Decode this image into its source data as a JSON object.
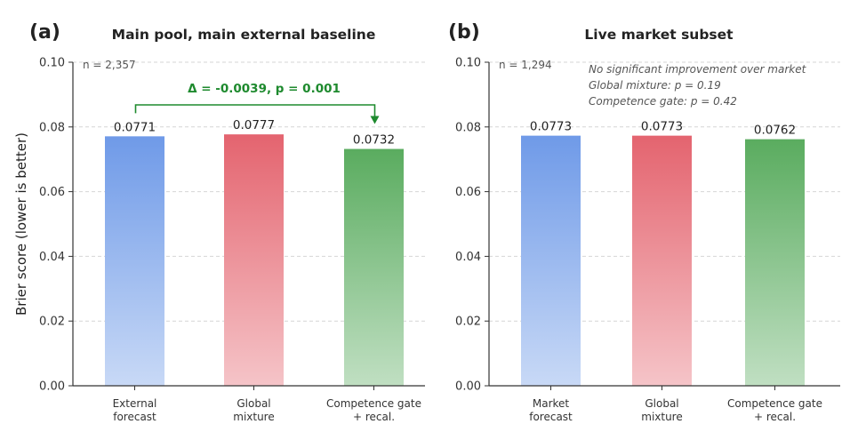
{
  "figure": {
    "ylabel": "Brier score (lower is better)"
  },
  "chart_data": [
    {
      "type": "bar",
      "panel_label": "(a)",
      "title": "Main pool, main external baseline",
      "n_label": "n = 2,357",
      "categories": [
        [
          "External",
          "forecast"
        ],
        [
          "Global",
          "mixture"
        ],
        [
          "Competence gate",
          "+ recal."
        ]
      ],
      "values": [
        0.0771,
        0.0777,
        0.0732
      ],
      "value_labels": [
        "0.0771",
        "0.0777",
        "0.0732"
      ],
      "colors": [
        "#6f9ae8",
        "#e4646f",
        "#5aac5f"
      ],
      "ylim": [
        0,
        0.1
      ],
      "yticks": [
        "0.00",
        "0.02",
        "0.04",
        "0.06",
        "0.08",
        "0.10"
      ],
      "grid": true,
      "annotation": {
        "text": "Δ = -0.0039, p = 0.001",
        "from_index": 0,
        "to_index": 2,
        "color": "#1e8a2e"
      },
      "notes": []
    },
    {
      "type": "bar",
      "panel_label": "(b)",
      "title": "Live market subset",
      "n_label": "n = 1,294",
      "categories": [
        [
          "Market",
          "forecast"
        ],
        [
          "Global",
          "mixture"
        ],
        [
          "Competence gate",
          "+ recal."
        ]
      ],
      "values": [
        0.0773,
        0.0773,
        0.0762
      ],
      "value_labels": [
        "0.0773",
        "0.0773",
        "0.0762"
      ],
      "colors": [
        "#6f9ae8",
        "#e4646f",
        "#5aac5f"
      ],
      "ylim": [
        0,
        0.1
      ],
      "yticks": [
        "0.00",
        "0.02",
        "0.04",
        "0.06",
        "0.08",
        "0.10"
      ],
      "grid": true,
      "notes": [
        "No significant improvement over market",
        "Global mixture: p = 0.19",
        "Competence gate: p = 0.42"
      ]
    }
  ]
}
